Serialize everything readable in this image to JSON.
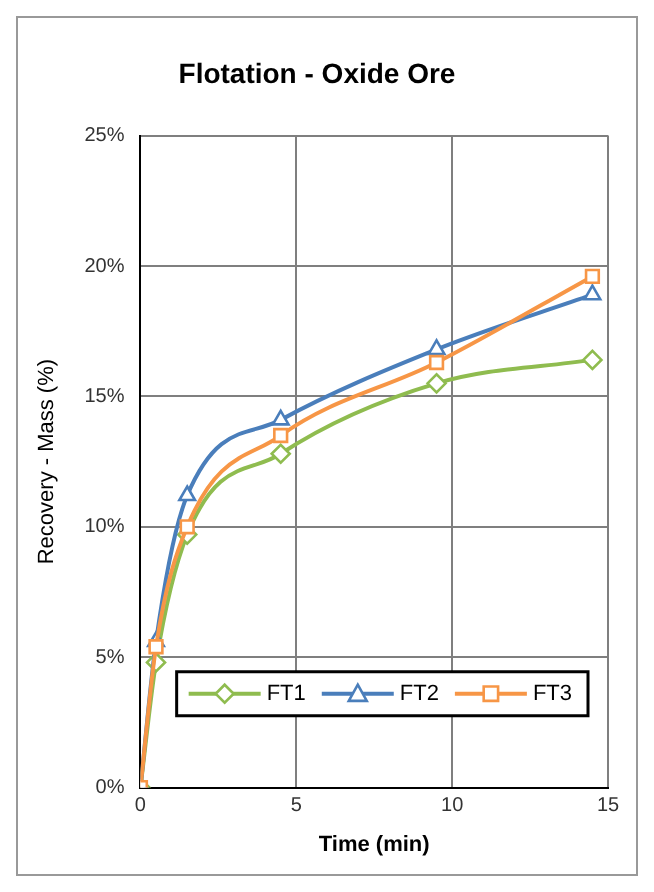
{
  "chart_data": {
    "type": "line",
    "title": "Flotation - Oxide Ore",
    "xlabel": "Time (min)",
    "ylabel": "Recovery - Mass (%)",
    "x": [
      0,
      0.5,
      1.5,
      4.5,
      9.5,
      14.5
    ],
    "series": [
      {
        "name": "FT1",
        "color": "#8fbc4f",
        "marker": "diamond",
        "values": [
          0,
          4.8,
          9.7,
          12.8,
          15.5,
          16.4
        ]
      },
      {
        "name": "FT2",
        "color": "#4a7ebb",
        "marker": "triangle",
        "values": [
          0,
          5.6,
          11.2,
          14.1,
          16.8,
          18.9
        ]
      },
      {
        "name": "FT3",
        "color": "#f79646",
        "marker": "square",
        "values": [
          0,
          5.4,
          10.0,
          13.5,
          16.3,
          19.6
        ]
      }
    ],
    "xlim": [
      0,
      15
    ],
    "xticks": [
      0,
      5,
      10,
      15
    ],
    "ylim": [
      0,
      25
    ],
    "yticks": [
      {
        "value": 0,
        "label": "0%"
      },
      {
        "value": 5,
        "label": "5%"
      },
      {
        "value": 10,
        "label": "10%"
      },
      {
        "value": 15,
        "label": "15%"
      },
      {
        "value": 20,
        "label": "20%"
      },
      {
        "value": 25,
        "label": "25%"
      }
    ],
    "grid": true,
    "legend": "bottom right"
  }
}
